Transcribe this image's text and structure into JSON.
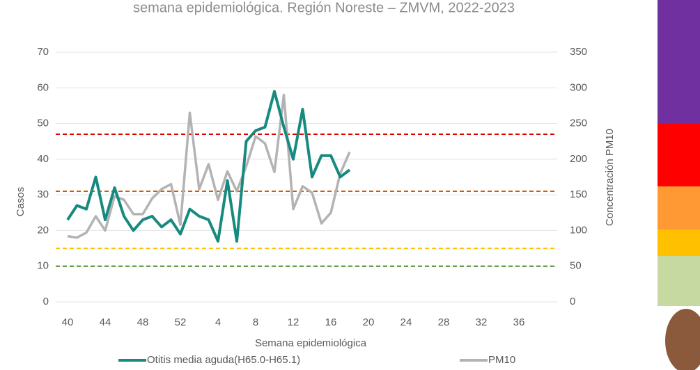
{
  "chart_data": {
    "type": "line",
    "title": "semana epidemiológica. Región Noreste – ZMVM, 2022-2023",
    "x_label": "Semana epidemiológica",
    "y_label": "Casos",
    "y2_label": "Concentración PM10",
    "categories": [
      40,
      null,
      null,
      null,
      44,
      null,
      null,
      null,
      48,
      null,
      null,
      null,
      52,
      null,
      null,
      null,
      4,
      null,
      null,
      null,
      8,
      null,
      null,
      null,
      12,
      null,
      null,
      null,
      16,
      null,
      null,
      null,
      20,
      null,
      null,
      null,
      24,
      null,
      null,
      null,
      28,
      null,
      null,
      null,
      32,
      null,
      null,
      null,
      36,
      null,
      null,
      null
    ],
    "ylim": [
      0,
      70
    ],
    "yticks": [
      0,
      10,
      20,
      30,
      40,
      50,
      60,
      70
    ],
    "y2lim": [
      0,
      350
    ],
    "y2ticks": [
      0,
      50,
      100,
      150,
      200,
      250,
      300,
      350
    ],
    "grid": true,
    "legend": "bottom",
    "series": [
      {
        "name": "Otitis media aguda(H65.0-H65.1)",
        "color": "#178a7f",
        "values": [
          23,
          27,
          26,
          35,
          23,
          32,
          24,
          20,
          23,
          24,
          21,
          23,
          19,
          26,
          24,
          23,
          17,
          34,
          17,
          45,
          48,
          49,
          59,
          49,
          40,
          54,
          35,
          41,
          41,
          35,
          37,
          null,
          null,
          null,
          null,
          null,
          null,
          null,
          null,
          null,
          null,
          null,
          null,
          null,
          null,
          null,
          null,
          null,
          null,
          null,
          null,
          null
        ]
      },
      {
        "name": "PM10",
        "color": "#b3b3b3",
        "axis": "y2",
        "values": [
          92,
          90,
          97,
          120,
          100,
          148,
          143,
          123,
          123,
          145,
          158,
          165,
          108,
          265,
          158,
          193,
          143,
          183,
          155,
          190,
          232,
          222,
          182,
          290,
          130,
          162,
          153,
          110,
          125,
          180,
          210,
          null,
          null,
          null,
          null,
          null,
          null,
          null,
          null,
          null,
          null,
          null,
          null,
          null,
          null,
          null,
          null,
          null,
          null,
          null,
          null,
          null
        ]
      }
    ],
    "reference_lines": [
      {
        "value": 235,
        "axis": "y2",
        "color": "#e00000"
      },
      {
        "value": 155,
        "axis": "y2",
        "color": "#d65a00"
      },
      {
        "value": 75,
        "axis": "y2",
        "color": "#ffc000"
      },
      {
        "value": 50,
        "axis": "y2",
        "color": "#4f8a2a"
      }
    ]
  }
}
